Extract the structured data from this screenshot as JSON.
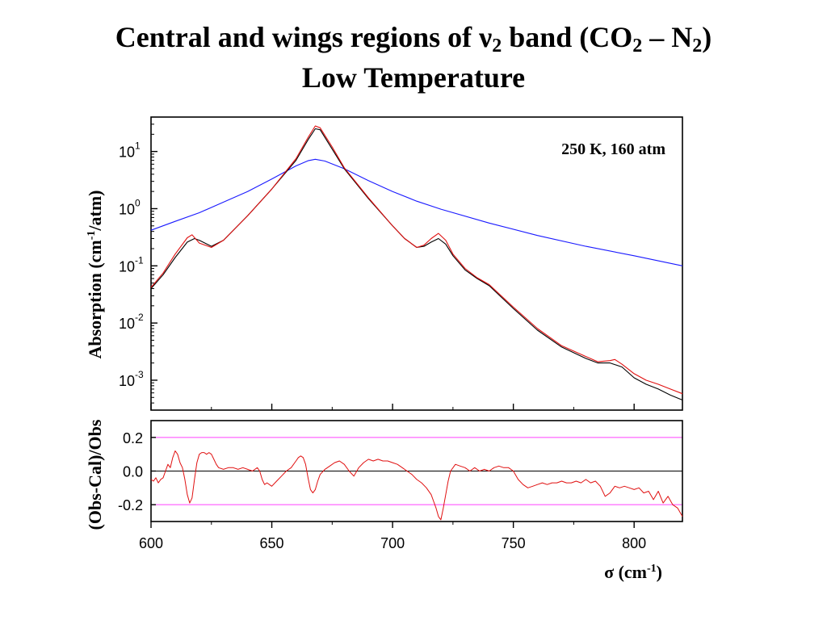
{
  "slide": {
    "title_main": "Central and wings regions of ",
    "title_nu": "ν",
    "title_nu_sub": "2",
    "title_mid": " band (CO",
    "title_co_sub": "2",
    "title_dash": " – N",
    "title_n_sub": "2",
    "title_close": ")",
    "title_line2": "Low Temperature"
  },
  "chart_data": [
    {
      "type": "line",
      "panel": "top",
      "yscale": "log",
      "xlim": [
        600,
        820
      ],
      "ylim": [
        0.0003,
        40
      ],
      "ylabel": "Absorption (cm",
      "ylabel_sup": "-1",
      "ylabel_tail": "/atm)",
      "annotation": "250 K, 160 atm",
      "y_ticks": [
        {
          "base": "10",
          "exp": "1",
          "value": 10
        },
        {
          "base": "10",
          "exp": "0",
          "value": 1
        },
        {
          "base": "10",
          "exp": "-1",
          "value": 0.1
        },
        {
          "base": "10",
          "exp": "-2",
          "value": 0.01
        },
        {
          "base": "10",
          "exp": "-3",
          "value": 0.001
        }
      ],
      "series": [
        {
          "color": "#1a1aff",
          "x": [
            600,
            610,
            620,
            630,
            640,
            650,
            655,
            660,
            665,
            668,
            672,
            680,
            690,
            700,
            710,
            720,
            740,
            760,
            780,
            800,
            820
          ],
          "y": [
            0.42,
            0.6,
            0.85,
            1.3,
            2.0,
            3.3,
            4.3,
            5.6,
            6.9,
            7.3,
            6.8,
            5.0,
            3.1,
            2.0,
            1.35,
            0.98,
            0.56,
            0.34,
            0.22,
            0.15,
            0.1
          ]
        },
        {
          "color": "#000000",
          "x": [
            600,
            605,
            610,
            615,
            618,
            620,
            625,
            630,
            640,
            650,
            660,
            665,
            668,
            670,
            675,
            680,
            690,
            700,
            705,
            710,
            713,
            716,
            719,
            722,
            725,
            730,
            735,
            740,
            750,
            760,
            770,
            780,
            785,
            790,
            795,
            800,
            805,
            810,
            815,
            820
          ],
          "y": [
            0.04,
            0.07,
            0.14,
            0.26,
            0.3,
            0.28,
            0.22,
            0.28,
            0.75,
            2.2,
            7.0,
            16.0,
            25.0,
            24.0,
            11.0,
            5.0,
            1.5,
            0.5,
            0.3,
            0.21,
            0.22,
            0.26,
            0.3,
            0.24,
            0.15,
            0.085,
            0.06,
            0.045,
            0.018,
            0.0075,
            0.0038,
            0.0024,
            0.002,
            0.002,
            0.0017,
            0.0011,
            0.00085,
            0.0007,
            0.00055,
            0.00045
          ]
        },
        {
          "color": "#e01010",
          "x": [
            600,
            605,
            610,
            615,
            617,
            620,
            625,
            630,
            640,
            650,
            660,
            665,
            668,
            670,
            675,
            680,
            690,
            700,
            705,
            710,
            713,
            716,
            719,
            722,
            725,
            730,
            735,
            740,
            750,
            760,
            770,
            780,
            785,
            790,
            792,
            795,
            800,
            805,
            810,
            815,
            820
          ],
          "y": [
            0.042,
            0.075,
            0.16,
            0.31,
            0.35,
            0.25,
            0.21,
            0.28,
            0.75,
            2.2,
            7.5,
            17.5,
            28.0,
            26.0,
            12.0,
            5.2,
            1.55,
            0.5,
            0.3,
            0.21,
            0.23,
            0.3,
            0.37,
            0.28,
            0.16,
            0.09,
            0.062,
            0.047,
            0.019,
            0.008,
            0.004,
            0.0026,
            0.0021,
            0.0022,
            0.0023,
            0.0019,
            0.0013,
            0.001,
            0.00085,
            0.0007,
            0.00058
          ]
        }
      ]
    },
    {
      "type": "line",
      "panel": "bottom",
      "xlim": [
        600,
        820
      ],
      "ylim": [
        -0.3,
        0.3
      ],
      "xlabel": "σ (cm",
      "xlabel_sup": "-1",
      "xlabel_tail": ")",
      "ylabel": "(Obs-Cal)/Obs",
      "x_ticks": [
        "600",
        "650",
        "700",
        "750",
        "800"
      ],
      "x_tick_values": [
        600,
        650,
        700,
        750,
        800
      ],
      "y_ticks": [
        "0.2",
        "0.0",
        "-0.2"
      ],
      "y_tick_values": [
        0.2,
        0.0,
        -0.2
      ],
      "reference_lines": [
        {
          "y": 0.2,
          "color": "#ff40ff"
        },
        {
          "y": 0.0,
          "color": "#000000"
        },
        {
          "y": -0.2,
          "color": "#ff40ff"
        }
      ],
      "series": [
        {
          "color": "#e01010",
          "x": [
            600,
            601,
            602,
            603,
            604,
            605,
            606,
            607,
            608,
            609,
            610,
            611,
            612,
            613,
            614,
            615,
            616,
            617,
            618,
            619,
            620,
            621,
            622,
            623,
            624,
            625,
            626,
            627,
            628,
            630,
            632,
            634,
            636,
            638,
            640,
            642,
            644,
            645,
            646,
            647,
            648,
            650,
            652,
            654,
            656,
            658,
            660,
            661,
            662,
            663,
            664,
            665,
            666,
            667,
            668,
            669,
            670,
            672,
            674,
            676,
            678,
            680,
            682,
            684,
            686,
            688,
            690,
            692,
            694,
            696,
            698,
            700,
            702,
            704,
            706,
            708,
            710,
            712,
            714,
            716,
            717,
            718,
            719,
            720,
            721,
            722,
            723,
            724,
            726,
            728,
            730,
            732,
            734,
            736,
            738,
            740,
            742,
            744,
            746,
            748,
            750,
            752,
            754,
            756,
            758,
            760,
            762,
            764,
            766,
            768,
            770,
            772,
            774,
            776,
            778,
            780,
            782,
            784,
            786,
            788,
            790,
            792,
            794,
            796,
            798,
            800,
            802,
            804,
            806,
            808,
            810,
            812,
            814,
            816,
            818,
            820
          ],
          "y": [
            -0.05,
            -0.06,
            -0.04,
            -0.07,
            -0.05,
            -0.04,
            0.0,
            0.04,
            0.02,
            0.08,
            0.12,
            0.1,
            0.05,
            0.02,
            -0.05,
            -0.14,
            -0.19,
            -0.16,
            -0.05,
            0.05,
            0.1,
            0.11,
            0.11,
            0.1,
            0.11,
            0.1,
            0.07,
            0.04,
            0.02,
            0.01,
            0.02,
            0.02,
            0.01,
            0.02,
            0.01,
            0.0,
            0.02,
            0.0,
            -0.05,
            -0.08,
            -0.07,
            -0.09,
            -0.06,
            -0.03,
            0.0,
            0.02,
            0.06,
            0.08,
            0.09,
            0.08,
            0.04,
            -0.04,
            -0.11,
            -0.13,
            -0.11,
            -0.06,
            -0.02,
            0.01,
            0.03,
            0.05,
            0.06,
            0.04,
            0.0,
            -0.03,
            0.02,
            0.05,
            0.07,
            0.06,
            0.07,
            0.06,
            0.06,
            0.05,
            0.04,
            0.02,
            0.0,
            -0.02,
            -0.05,
            -0.07,
            -0.1,
            -0.14,
            -0.18,
            -0.22,
            -0.27,
            -0.29,
            -0.22,
            -0.14,
            -0.06,
            0.0,
            0.04,
            0.03,
            0.02,
            0.0,
            0.02,
            0.0,
            0.01,
            0.0,
            0.02,
            0.03,
            0.02,
            0.02,
            0.0,
            -0.05,
            -0.08,
            -0.1,
            -0.09,
            -0.08,
            -0.07,
            -0.08,
            -0.07,
            -0.07,
            -0.06,
            -0.07,
            -0.07,
            -0.06,
            -0.07,
            -0.05,
            -0.07,
            -0.06,
            -0.09,
            -0.15,
            -0.13,
            -0.09,
            -0.1,
            -0.09,
            -0.1,
            -0.11,
            -0.1,
            -0.13,
            -0.12,
            -0.17,
            -0.12,
            -0.19,
            -0.15,
            -0.2,
            -0.22,
            -0.27
          ]
        }
      ]
    }
  ]
}
